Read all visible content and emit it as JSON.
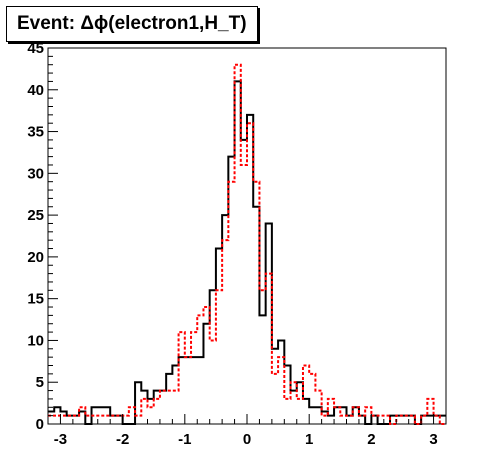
{
  "title": "Event: Δϕ(electron1,H_T)",
  "chart_data": {
    "type": "step-histogram",
    "title": "Event: Δϕ(electron1,H_T)",
    "xlabel": "",
    "ylabel": "",
    "xlim": [
      -3.2,
      3.2
    ],
    "ylim": [
      0,
      45
    ],
    "bin_edges_start": -3.2,
    "bin_width": 0.1,
    "x_ticks": [
      -3,
      -2,
      -1,
      0,
      1,
      2,
      3
    ],
    "y_ticks": [
      0,
      5,
      10,
      15,
      20,
      25,
      30,
      35,
      40,
      45
    ],
    "grid": false,
    "legend": "none",
    "series": [
      {
        "color": "#000000",
        "style": "solid",
        "values": [
          1.5,
          2,
          1.5,
          1,
          1,
          1.5,
          0,
          2,
          2,
          2,
          1,
          1,
          0,
          0,
          5,
          4,
          3,
          4,
          4,
          6,
          7,
          8,
          8,
          8,
          8,
          12,
          16,
          21,
          25,
          32,
          41,
          34,
          37,
          26,
          13,
          24,
          9,
          10,
          7,
          4,
          5,
          3,
          2,
          2,
          1.5,
          1,
          2,
          2,
          1,
          2,
          1,
          0,
          1,
          0,
          0,
          1,
          1,
          1,
          1,
          0,
          1,
          1,
          1,
          1
        ]
      },
      {
        "color": "#ff0000",
        "style": "dashed",
        "values": [
          1,
          1,
          1,
          1,
          1,
          2,
          1,
          1,
          1,
          1,
          1,
          1,
          1,
          2,
          1,
          3,
          2,
          3,
          4,
          4,
          4,
          11,
          8,
          11,
          13,
          14,
          10,
          16,
          22,
          29,
          43,
          31,
          36,
          29,
          16,
          18,
          6,
          8,
          3,
          5,
          3,
          7,
          6,
          4,
          1,
          3,
          2,
          1,
          1,
          2,
          1,
          2,
          1,
          1,
          1,
          0,
          1,
          1,
          1,
          0,
          1,
          3,
          1,
          0
        ]
      }
    ]
  }
}
